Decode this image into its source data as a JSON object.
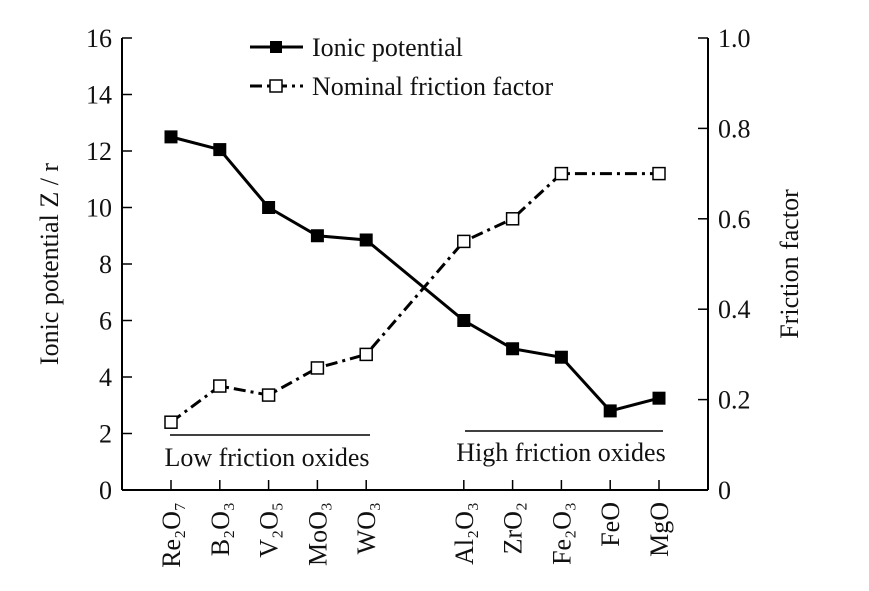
{
  "chart_data": {
    "type": "line",
    "categories": [
      "Re₂O₇",
      "B₂O₃",
      "V₂O₅",
      "MoO₃",
      "WO₃",
      "Al₂O₃",
      "ZrO₂",
      "Fe₂O₃",
      "FeO",
      "MgO"
    ],
    "category_slots": [
      0,
      1,
      2,
      3,
      4,
      6,
      7,
      8,
      9,
      10
    ],
    "ylabel": "Ionic potential Z / r",
    "y2label": "Friction factor",
    "ylim": [
      0,
      16
    ],
    "y2lim": [
      0,
      1.0
    ],
    "yticks": [
      "0",
      "2",
      "4",
      "6",
      "8",
      "10",
      "12",
      "14",
      "16"
    ],
    "y2ticks": [
      "0",
      "0.2",
      "0.4",
      "0.6",
      "0.8",
      "1.0"
    ],
    "legend_position": "top-center",
    "series": [
      {
        "name": "Ionic potential",
        "axis": "left",
        "marker": "filled-square",
        "line": "solid",
        "values": [
          12.5,
          12.05,
          10.0,
          9.0,
          8.85,
          6.0,
          5.0,
          4.7,
          2.8,
          3.25
        ]
      },
      {
        "name": "Nominal friction factor",
        "axis": "right",
        "marker": "open-square",
        "line": "dash-dot",
        "values": [
          0.15,
          0.23,
          0.21,
          0.27,
          0.3,
          0.55,
          0.6,
          0.7,
          null,
          0.7
        ]
      }
    ],
    "annotations": [
      "Low friction oxides",
      "High friction oxides"
    ]
  }
}
